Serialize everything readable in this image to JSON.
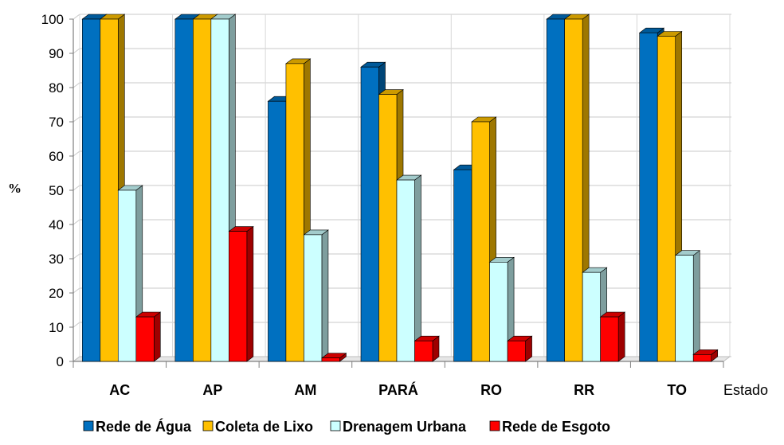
{
  "chart_data": {
    "type": "bar",
    "categories": [
      "AC",
      "AP",
      "AM",
      "PARÁ",
      "RO",
      "RR",
      "TO"
    ],
    "series": [
      {
        "name": "Rede de Água",
        "values": [
          100,
          100,
          76,
          86,
          56,
          100,
          96
        ],
        "color": "#0070C0"
      },
      {
        "name": "Coleta de Lixo",
        "values": [
          100,
          100,
          87,
          78,
          70,
          100,
          95
        ],
        "color": "#FFC000"
      },
      {
        "name": "Drenagem Urbana",
        "values": [
          50,
          100,
          37,
          53,
          29,
          26,
          31
        ],
        "color": "#CCFFFF"
      },
      {
        "name": "Rede de Esgoto",
        "values": [
          13,
          38,
          1,
          6,
          6,
          13,
          2
        ],
        "color": "#FF0000"
      }
    ],
    "xlabel": "Estado",
    "ylabel": "%",
    "ylim": [
      0,
      100
    ],
    "yticks": [
      "0",
      "10",
      "20",
      "30",
      "40",
      "50",
      "60",
      "70",
      "80",
      "90",
      "100"
    ],
    "grid": true,
    "legend_position": "bottom",
    "style": "3d-bar"
  }
}
